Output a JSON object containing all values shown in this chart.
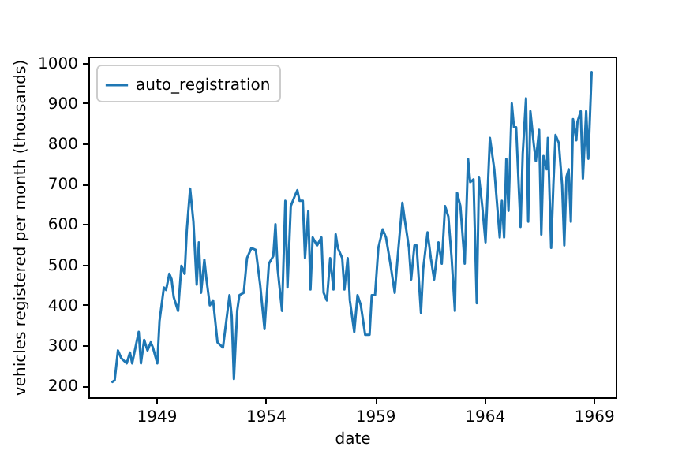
{
  "chart_data": {
    "type": "line",
    "xlabel": "date",
    "ylabel": "vehicles registered per month (thousands)",
    "x": [
      1947.0,
      1947.1,
      1947.25,
      1947.4,
      1947.65,
      1947.8,
      1947.9,
      1948.1,
      1948.2,
      1948.3,
      1948.45,
      1948.6,
      1948.75,
      1948.85,
      1949.05,
      1949.15,
      1949.35,
      1949.45,
      1949.6,
      1949.7,
      1949.8,
      1950.0,
      1950.15,
      1950.3,
      1950.4,
      1950.55,
      1950.7,
      1950.85,
      1950.95,
      1951.05,
      1951.2,
      1951.3,
      1951.45,
      1951.6,
      1951.8,
      1952.05,
      1952.35,
      1952.45,
      1952.55,
      1952.7,
      1952.8,
      1953.0,
      1953.15,
      1953.35,
      1953.55,
      1953.75,
      1953.95,
      1954.15,
      1954.35,
      1954.45,
      1954.55,
      1954.75,
      1954.9,
      1955.0,
      1955.15,
      1955.35,
      1955.45,
      1955.55,
      1955.7,
      1955.8,
      1955.95,
      1956.05,
      1956.15,
      1956.35,
      1956.55,
      1956.65,
      1956.8,
      1956.95,
      1957.1,
      1957.2,
      1957.3,
      1957.5,
      1957.6,
      1957.75,
      1957.85,
      1958.05,
      1958.2,
      1958.35,
      1958.55,
      1958.75,
      1958.85,
      1959.0,
      1959.15,
      1959.35,
      1959.5,
      1959.7,
      1959.9,
      1960.05,
      1960.25,
      1960.35,
      1960.55,
      1960.65,
      1960.8,
      1960.9,
      1961.1,
      1961.2,
      1961.4,
      1961.55,
      1961.7,
      1961.9,
      1962.05,
      1962.2,
      1962.35,
      1962.5,
      1962.65,
      1962.75,
      1962.9,
      1963.1,
      1963.25,
      1963.35,
      1963.5,
      1963.65,
      1963.75,
      1963.9,
      1964.05,
      1964.25,
      1964.45,
      1964.7,
      1964.8,
      1964.9,
      1965.0,
      1965.1,
      1965.25,
      1965.35,
      1965.45,
      1965.65,
      1965.75,
      1965.9,
      1966.0,
      1966.1,
      1966.25,
      1966.35,
      1966.5,
      1966.6,
      1966.7,
      1966.85,
      1966.9,
      1967.05,
      1967.15,
      1967.25,
      1967.4,
      1967.55,
      1967.65,
      1967.75,
      1967.85,
      1967.95,
      1968.05,
      1968.2,
      1968.25,
      1968.4,
      1968.5,
      1968.65,
      1968.75,
      1968.9
    ],
    "series": [
      {
        "name": "auto_registration",
        "color": "#1f77b4",
        "values": [
          209,
          213,
          287,
          268,
          255,
          282,
          255,
          307,
          333,
          255,
          313,
          287,
          307,
          294,
          255,
          360,
          443,
          437,
          477,
          464,
          419,
          385,
          497,
          477,
          587,
          688,
          606,
          450,
          555,
          430,
          512,
          462,
          399,
          411,
          307,
          294,
          424,
          372,
          216,
          385,
          424,
          430,
          516,
          541,
          536,
          450,
          340,
          502,
          521,
          600,
          489,
          385,
          658,
          443,
          645,
          672,
          684,
          658,
          658,
          516,
          633,
          438,
          567,
          547,
          567,
          430,
          411,
          516,
          438,
          575,
          541,
          516,
          438,
          516,
          411,
          333,
          424,
          399,
          326,
          326,
          424,
          424,
          541,
          587,
          567,
          502,
          430,
          528,
          653,
          614,
          541,
          463,
          547,
          547,
          380,
          489,
          580,
          516,
          463,
          555,
          502,
          645,
          619,
          516,
          385,
          678,
          645,
          502,
          762,
          704,
          711,
          404,
          717,
          645,
          555,
          814,
          736,
          567,
          658,
          567,
          762,
          633,
          899,
          840,
          840,
          593,
          775,
          912,
          606,
          880,
          801,
          756,
          834,
          574,
          769,
          736,
          814,
          541,
          697,
          821,
          801,
          697,
          547,
          717,
          736,
          606,
          860,
          808,
          853,
          880,
          713,
          880,
          762,
          977
        ]
      }
    ],
    "xlim": [
      1945.9,
      1970.0
    ],
    "ylim": [
      171,
      1015
    ],
    "xticks": [
      1949,
      1954,
      1959,
      1964,
      1969
    ],
    "yticks": [
      200,
      300,
      400,
      500,
      600,
      700,
      800,
      900,
      1000
    ],
    "grid": false,
    "legend": "top left",
    "marker": "none",
    "line_style": "solid"
  }
}
